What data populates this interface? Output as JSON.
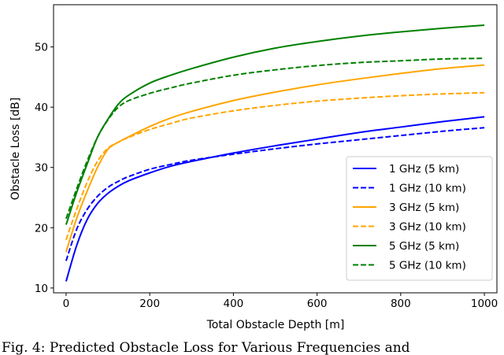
{
  "chart_data": {
    "type": "line",
    "xlabel": "Total Obstacle Depth [m]",
    "ylabel": "Obstacle Loss [dB]",
    "xlim": [
      -30,
      1030
    ],
    "ylim": [
      9.2,
      57.0
    ],
    "xticks": [
      0,
      200,
      400,
      600,
      800,
      1000
    ],
    "yticks": [
      10,
      20,
      30,
      40,
      50
    ],
    "grid": false,
    "legend_position": "lower-right",
    "x": [
      0,
      25,
      50,
      75,
      100,
      125,
      150,
      200,
      250,
      300,
      400,
      500,
      600,
      700,
      800,
      900,
      1000
    ],
    "series": [
      {
        "name": "1 GHz (5 km)",
        "color": "#0000ff",
        "dash": false,
        "values": [
          11.1,
          17.0,
          21.3,
          24.0,
          25.7,
          26.9,
          27.8,
          29.1,
          30.2,
          31.0,
          32.4,
          33.6,
          34.7,
          35.8,
          36.7,
          37.6,
          38.4
        ]
      },
      {
        "name": "1 GHz (10 km)",
        "color": "#0000ff",
        "dash": true,
        "values": [
          14.5,
          19.7,
          23.0,
          25.2,
          26.7,
          27.7,
          28.5,
          29.7,
          30.5,
          31.2,
          32.2,
          33.1,
          33.9,
          34.6,
          35.3,
          36.0,
          36.6
        ]
      },
      {
        "name": "3 GHz (5 km)",
        "color": "#ffa500",
        "dash": false,
        "values": [
          16.0,
          21.5,
          26.0,
          30.0,
          33.0,
          34.2,
          35.1,
          36.8,
          38.2,
          39.3,
          41.1,
          42.5,
          43.7,
          44.7,
          45.6,
          46.4,
          47.0
        ]
      },
      {
        "name": "3 GHz (10 km)",
        "color": "#ffa500",
        "dash": true,
        "values": [
          18.0,
          23.0,
          27.5,
          31.0,
          33.2,
          34.2,
          35.0,
          36.3,
          37.3,
          38.2,
          39.4,
          40.3,
          41.0,
          41.5,
          41.9,
          42.2,
          42.4
        ]
      },
      {
        "name": "5 GHz (5 km)",
        "color": "#008000",
        "dash": false,
        "values": [
          20.5,
          25.8,
          30.5,
          35.0,
          38.0,
          40.5,
          42.0,
          44.0,
          45.3,
          46.4,
          48.3,
          49.8,
          50.9,
          51.8,
          52.5,
          53.1,
          53.6
        ]
      },
      {
        "name": "5 GHz (10 km)",
        "color": "#008000",
        "dash": true,
        "values": [
          21.5,
          26.4,
          31.0,
          35.0,
          37.9,
          40.0,
          41.1,
          42.3,
          43.2,
          44.0,
          45.3,
          46.2,
          46.9,
          47.4,
          47.7,
          48.0,
          48.1
        ]
      }
    ]
  },
  "caption": "Fig. 4: Predicted Obstacle Loss for Various Frequencies and"
}
